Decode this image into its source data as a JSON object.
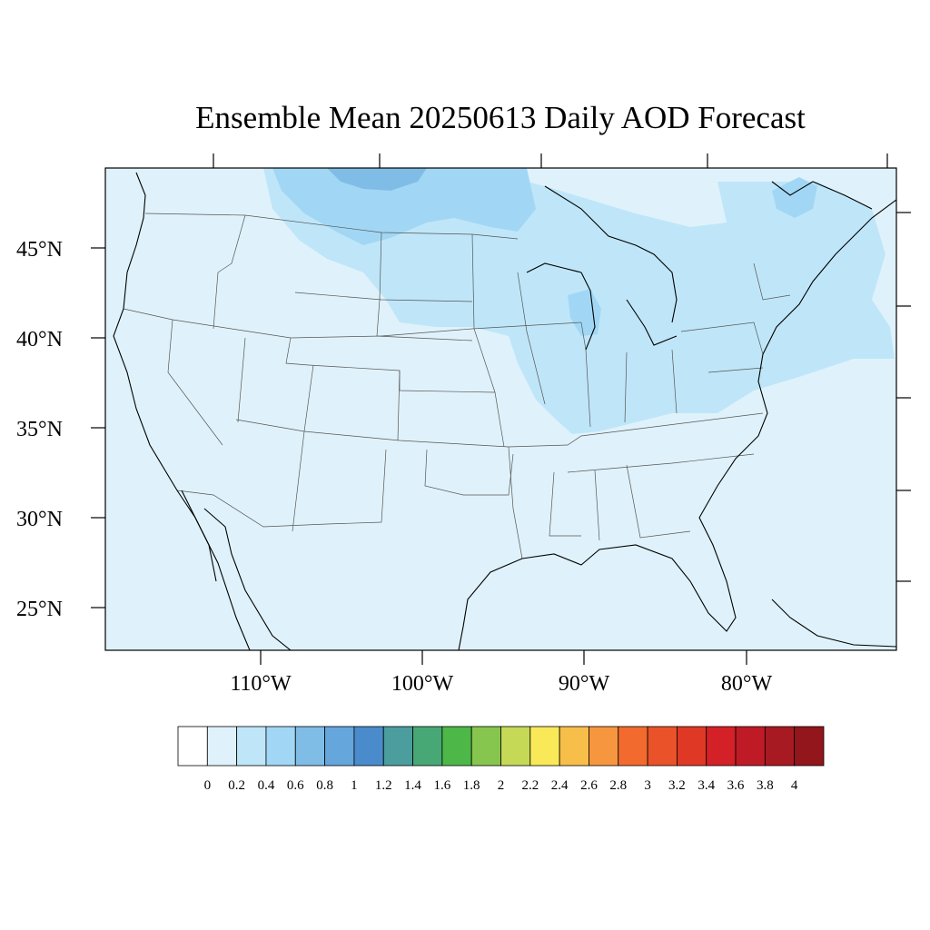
{
  "title": "Ensemble Mean 20250613 Daily AOD Forecast",
  "map": {
    "projection": "lambert-conformal",
    "region": "CONUS",
    "background_fill": "#dff2fb",
    "lat_labels": [
      "45°N",
      "40°N",
      "35°N",
      "30°N",
      "25°N"
    ],
    "lon_labels": [
      "110°W",
      "100°W",
      "90°W",
      "80°W"
    ],
    "aod_regions": [
      {
        "level": "0.2-0.4",
        "color": "#bfe6f8",
        "area": "northern plains and upper Midwest"
      },
      {
        "level": "0.2-0.4",
        "color": "#bfe6f8",
        "area": "Ohio Valley and Mid-Atlantic"
      },
      {
        "level": "0.2-0.4",
        "color": "#bfe6f8",
        "area": "Northeast and Maine"
      },
      {
        "level": "0.4-0.6",
        "color": "#a1d7f5",
        "area": "southern Canada north of Montana/North Dakota"
      },
      {
        "level": "0.6-0.8",
        "color": "#80bde6",
        "area": "Saskatchewan/Manitoba"
      }
    ]
  },
  "colorbar": {
    "colors": [
      "#ffffff",
      "#dff2fb",
      "#bfe6f8",
      "#a1d7f5",
      "#80bde6",
      "#65a6dc",
      "#4a8ccb",
      "#4c9d9e",
      "#48a875",
      "#4db748",
      "#87c64e",
      "#c5d957",
      "#f9e858",
      "#f8be4a",
      "#f6963f",
      "#f26a2e",
      "#ea5229",
      "#df3926",
      "#d32127",
      "#bf1b26",
      "#a81a22",
      "#92161c"
    ],
    "labels": [
      "0",
      "0.2",
      "0.4",
      "0.6",
      "0.8",
      "1",
      "1.2",
      "1.4",
      "1.6",
      "1.8",
      "2",
      "2.2",
      "2.4",
      "2.6",
      "2.8",
      "3",
      "3.2",
      "3.4",
      "3.6",
      "3.8",
      "4"
    ]
  }
}
